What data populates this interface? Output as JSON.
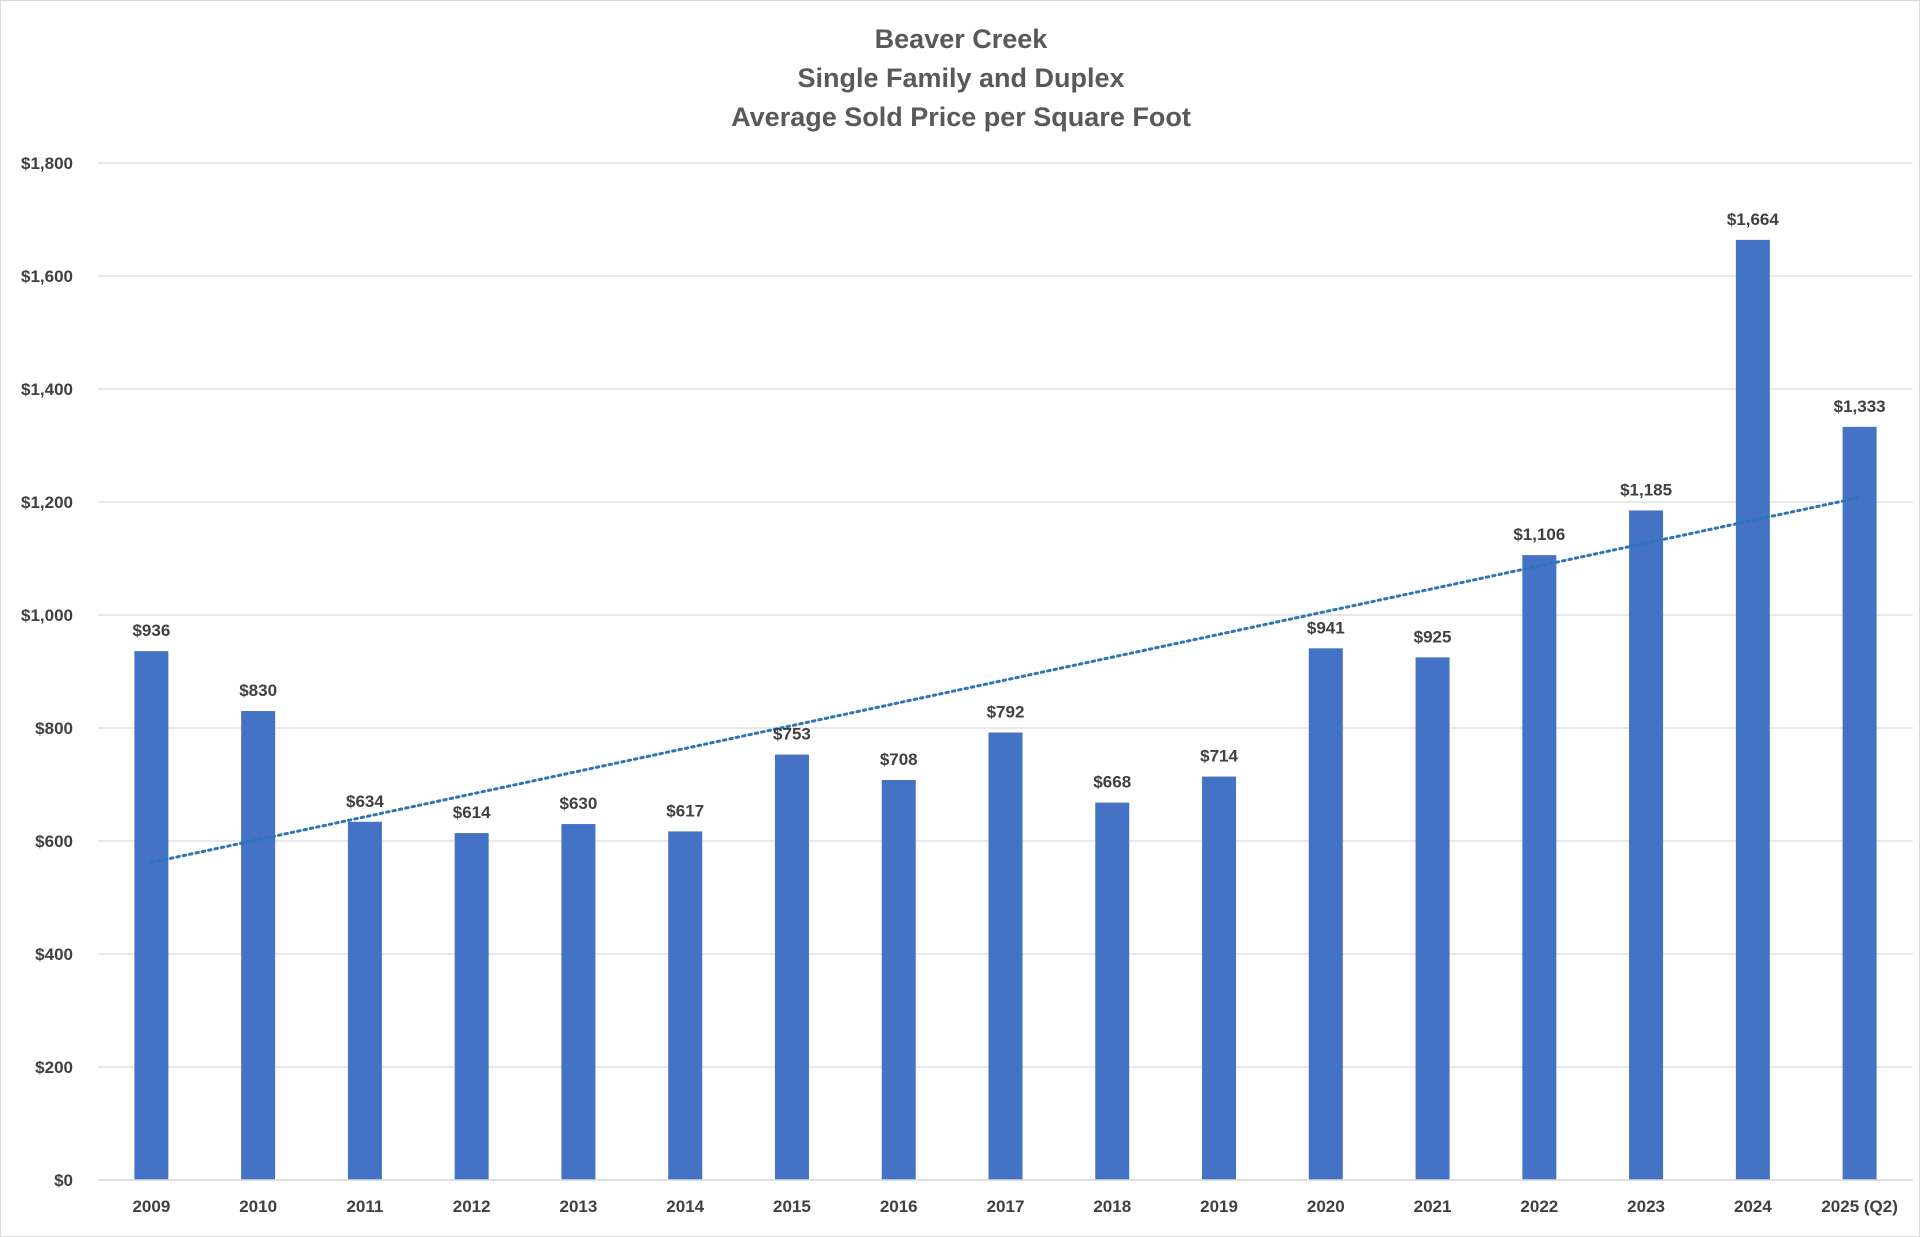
{
  "chart_data": {
    "type": "bar",
    "title_lines": [
      "Beaver Creek",
      "Single Family and Duplex",
      "Average Sold Price per Square Foot"
    ],
    "categories": [
      "2009",
      "2010",
      "2011",
      "2012",
      "2013",
      "2014",
      "2015",
      "2016",
      "2017",
      "2018",
      "2019",
      "2020",
      "2021",
      "2022",
      "2023",
      "2024",
      "2025 (Q2)"
    ],
    "values": [
      936,
      830,
      634,
      614,
      630,
      617,
      753,
      708,
      792,
      668,
      714,
      941,
      925,
      1106,
      1185,
      1664,
      1333
    ],
    "data_labels": [
      "$936",
      "$830",
      "$634",
      "$614",
      "$630",
      "$617",
      "$753",
      "$708",
      "$792",
      "$668",
      "$714",
      "$941",
      "$925",
      "$1,106",
      "$1,185",
      "$1,664",
      "$1,333"
    ],
    "y_ticks": [
      0,
      200,
      400,
      600,
      800,
      1000,
      1200,
      1400,
      1600,
      1800
    ],
    "y_tick_labels": [
      "$0",
      "$200",
      "$400",
      "$600",
      "$800",
      "$1,000",
      "$1,200",
      "$1,400",
      "$1,600",
      "$1,800"
    ],
    "ylim": [
      0,
      1800
    ],
    "xlabel": "",
    "ylabel": "",
    "grid": true,
    "legend": "none",
    "trendline": {
      "type": "linear",
      "style": "dotted",
      "start_value": 562,
      "end_value": 1208
    },
    "colors": {
      "bar": "#4472c4",
      "trendline": "#2e75b6",
      "grid": "#d9d9d9",
      "text": "#404040",
      "title": "#595959"
    }
  }
}
